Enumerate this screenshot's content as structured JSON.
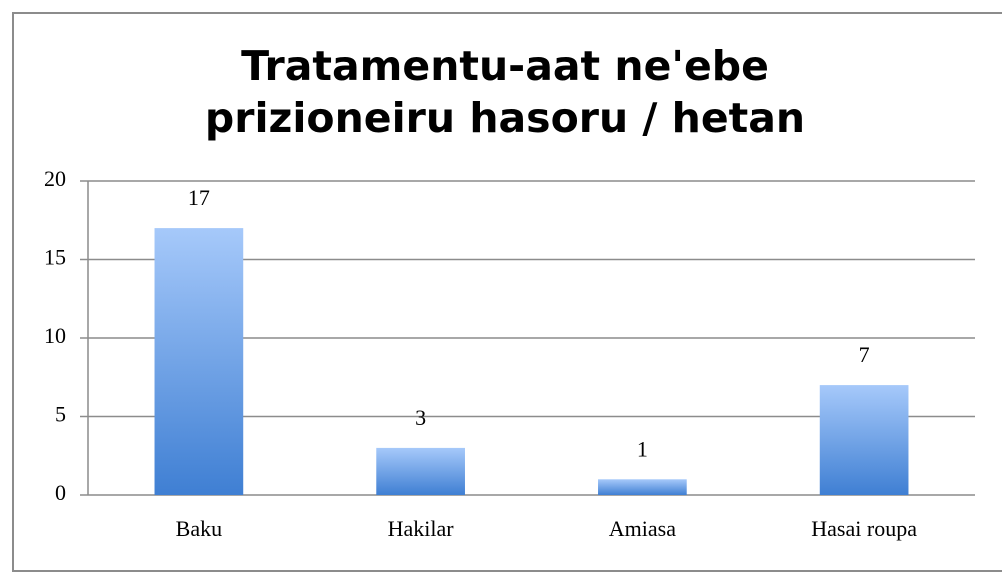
{
  "chart_data": {
    "type": "bar",
    "title": "Tratamentu-aat ne'ebe prizioneiru hasoru / hetan",
    "categories": [
      "Baku",
      "Hakilar",
      "Amiasa",
      "Hasai roupa"
    ],
    "values": [
      17,
      3,
      1,
      7
    ],
    "color": "#3f7fd3",
    "ylim": [
      0,
      20
    ],
    "yticks": [
      0,
      5,
      10,
      15,
      20
    ],
    "grid": true
  }
}
